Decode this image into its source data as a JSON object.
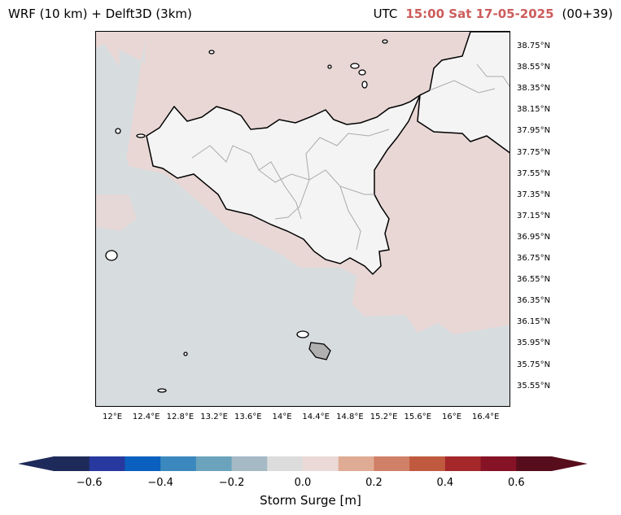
{
  "header": {
    "model_left": "WRF (10 km) + Delft3D (3km)",
    "tz": "UTC",
    "time": "15:00 Sat 17-05-2025",
    "lead": "(00+39)"
  },
  "map": {
    "lat_labels": [
      "38.75°N",
      "38.55°N",
      "38.35°N",
      "38.15°N",
      "37.95°N",
      "37.75°N",
      "37.55°N",
      "37.35°N",
      "37.15°N",
      "36.95°N",
      "36.75°N",
      "36.55°N",
      "36.35°N",
      "36.15°N",
      "35.95°N",
      "35.75°N",
      "35.55°N"
    ],
    "lon_labels": [
      "12°E",
      "12.4°E",
      "12.8°E",
      "13.2°E",
      "13.6°E",
      "14°E",
      "14.4°E",
      "14.8°E",
      "15.2°E",
      "15.6°E",
      "16°E",
      "16.4°E"
    ],
    "colors": {
      "land": "#f4f4f4",
      "sea_neutral": "#d7dcdf",
      "sea_positive": "#e8d7d5",
      "coast": "#000000",
      "borders": "#aaaaaa"
    }
  },
  "colorbar": {
    "label": "Storm Surge [m]",
    "ticks": [
      "−0.6",
      "−0.4",
      "−0.2",
      "0.0",
      "0.2",
      "0.4",
      "0.6"
    ],
    "colors": [
      "#1e2a5a",
      "#27399e",
      "#0b5fbf",
      "#3a88bd",
      "#6ba3bc",
      "#a5bac5",
      "#dcdcdc",
      "#ead9d6",
      "#dfab95",
      "#d08066",
      "#c05a3e",
      "#a4282a",
      "#861226",
      "#580d1c"
    ]
  }
}
